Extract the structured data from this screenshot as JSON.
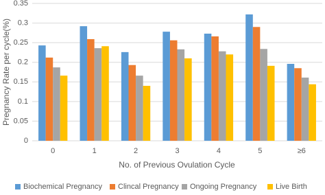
{
  "chart_data": {
    "type": "bar",
    "x_label": "No. of Previous Ovulation Cycle",
    "y_label": "Pregnancy Rate per cycle(%)",
    "categories": [
      "0",
      "1",
      "2",
      "3",
      "4",
      "5",
      "≥6"
    ],
    "series": [
      {
        "name": "Biochemical Pregnancy",
        "color": "#5b9bd5",
        "values": [
          0.243,
          0.292,
          0.226,
          0.278,
          0.273,
          0.322,
          0.196
        ]
      },
      {
        "name": "Clincal Pregnancy",
        "color": "#ed7d31",
        "values": [
          0.212,
          0.259,
          0.193,
          0.256,
          0.266,
          0.29,
          0.185
        ]
      },
      {
        "name": "Ongoing Pregnancy",
        "color": "#a5a5a5",
        "values": [
          0.187,
          0.236,
          0.166,
          0.233,
          0.228,
          0.234,
          0.161
        ]
      },
      {
        "name": "Live Birth",
        "color": "#ffc000",
        "values": [
          0.166,
          0.241,
          0.14,
          0.21,
          0.22,
          0.191,
          0.144
        ]
      }
    ],
    "ylim": [
      0,
      0.35
    ],
    "yticks": [
      0,
      0.05,
      0.1,
      0.15,
      0.2,
      0.25,
      0.3,
      0.35
    ],
    "grid": true,
    "legend": "bottom"
  }
}
